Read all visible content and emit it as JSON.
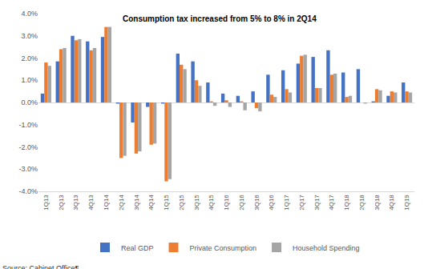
{
  "chart_data": {
    "type": "bar",
    "categories": [
      "1Q13",
      "2Q13",
      "3Q13",
      "4Q13",
      "1Q14",
      "2Q14",
      "3Q14",
      "4Q14",
      "1Q15",
      "2Q15",
      "3Q15",
      "4Q15",
      "1Q16",
      "2Q16",
      "3Q16",
      "4Q16",
      "1Q17",
      "2Q17",
      "3Q17",
      "4Q17",
      "1Q18",
      "2Q18",
      "3Q18",
      "4Q18",
      "1Q19"
    ],
    "series": [
      {
        "name": "Real GDP",
        "color": "#4472c4",
        "values": [
          0.4,
          1.85,
          3.0,
          2.75,
          2.95,
          -0.05,
          -0.9,
          -0.2,
          -0.05,
          2.2,
          1.85,
          0.9,
          0.4,
          0.3,
          0.5,
          1.25,
          1.45,
          1.75,
          2.05,
          2.35,
          1.35,
          1.5,
          0.05,
          0.3,
          0.9
        ]
      },
      {
        "name": "Private Consumption",
        "color": "#ed7d31",
        "values": [
          1.8,
          2.4,
          2.8,
          2.35,
          3.4,
          -2.5,
          -2.3,
          -1.9,
          -3.55,
          1.7,
          1.0,
          0.05,
          0.1,
          0.05,
          -0.25,
          0.35,
          0.6,
          2.1,
          0.65,
          1.25,
          0.25,
          0.0,
          0.6,
          0.5,
          0.5
        ]
      },
      {
        "name": "Household Spending",
        "color": "#a5a5a5",
        "values": [
          1.65,
          2.45,
          2.85,
          2.45,
          3.4,
          -2.4,
          -2.2,
          -1.85,
          -3.45,
          1.5,
          0.75,
          -0.15,
          -0.2,
          -0.35,
          -0.4,
          0.25,
          0.45,
          2.15,
          0.65,
          1.3,
          0.3,
          -0.05,
          0.55,
          0.45,
          0.45
        ]
      }
    ],
    "ylim": [
      -4.0,
      4.0
    ],
    "yticks": [
      {
        "value": -4.0,
        "label": "-4.0%"
      },
      {
        "value": -3.0,
        "label": "-3.0%"
      },
      {
        "value": -2.0,
        "label": "-2.0%"
      },
      {
        "value": -1.0,
        "label": "-1.0%"
      },
      {
        "value": 0.0,
        "label": "0.0%"
      },
      {
        "value": 1.0,
        "label": "1.0%"
      },
      {
        "value": 2.0,
        "label": "2.0%"
      },
      {
        "value": 3.0,
        "label": "3.0%"
      },
      {
        "value": 4.0,
        "label": "4.0%"
      }
    ],
    "grid": false,
    "legend": "bottom",
    "annotations": [
      {
        "text": "Consumption tax increased from 5% to 8% in 2Q14",
        "x": "2Q14",
        "y": 3.75
      }
    ],
    "source": "Source: Cabinet Office¶"
  }
}
